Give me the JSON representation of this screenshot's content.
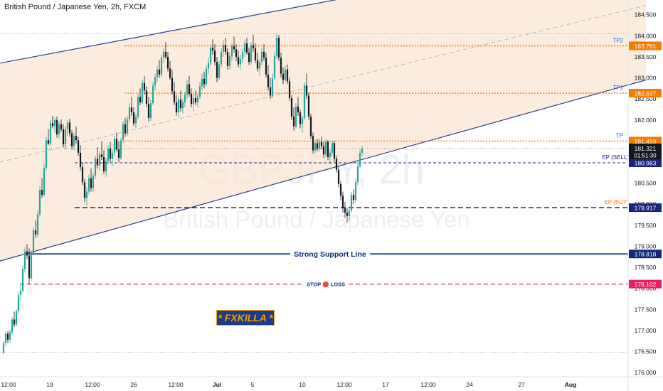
{
  "title": "British Pound / Japanese Yen, 2h, FXCM",
  "watermark": {
    "symbol": "GBPJPY, 2h",
    "name": "British Pound / Japanese Yen"
  },
  "brand": "* FXKILLA *",
  "colors": {
    "up": "#26a69a",
    "down": "#131722",
    "channel": "#2a3f8f",
    "channel_fill": "#fbe5d2",
    "mid_dash": "#b3b8cc",
    "target": "#f57c00",
    "entry": "#1a237e",
    "support": "#0d2b7a",
    "stop": "#e91e63",
    "price": "#131722"
  },
  "chart_data": {
    "type": "candlestick",
    "title": "British Pound / Japanese Yen, 2h, FXCM",
    "ylim": [
      175.9,
      184.85
    ],
    "y_ticks": [
      "184.500",
      "184.000",
      "183.500",
      "183.000",
      "182.500",
      "182.000",
      "181.500",
      "181.000",
      "180.500",
      "180.000",
      "179.500",
      "179.000",
      "178.500",
      "178.000",
      "177.500",
      "177.000",
      "176.500",
      "176.000"
    ],
    "x_ticks": [
      "12:00",
      "19",
      "12:00",
      "26",
      "12:00",
      "Jul",
      "5",
      "10",
      "12:00",
      "17",
      "12:00",
      "24",
      "27",
      "Aug"
    ],
    "grid": false,
    "levels": [
      {
        "label": "TP2",
        "value": 183.761,
        "value_label": "183.761",
        "kind": "target"
      },
      {
        "label": "TP1",
        "value": 182.637,
        "value_label": "182.637",
        "kind": "target"
      },
      {
        "label": "TP",
        "value": 181.499,
        "value_label": "181.499",
        "kind": "target"
      },
      {
        "label": "EP (SELL)",
        "value": 180.983,
        "value_label": "180.983",
        "kind": "entry"
      },
      {
        "label": "EP (BUY)",
        "value": 179.917,
        "value_label": "179.917",
        "kind": "entry"
      },
      {
        "label": "Strong Support Line",
        "value": 178.818,
        "value_label": "178.818",
        "kind": "support"
      },
      {
        "label": "STOP 🔴 LOSS",
        "value": 178.102,
        "value_label": "178.102",
        "kind": "stop"
      }
    ],
    "last_price": {
      "value": 181.321,
      "label": "181.321",
      "countdown": "01:51:30"
    },
    "channel": {
      "upper": [
        [
          0,
          183.35
        ],
        [
          492,
          184.92
        ]
      ],
      "lower": [
        [
          0,
          178.65
        ],
        [
          908,
          182.95
        ]
      ],
      "mid": [
        [
          0,
          181.0
        ],
        [
          908,
          184.72
        ]
      ]
    },
    "ohlc": [
      [
        176.48,
        176.75,
        176.44,
        176.7
      ],
      [
        176.7,
        176.98,
        176.62,
        176.92
      ],
      [
        176.92,
        176.98,
        176.7,
        176.78
      ],
      [
        176.78,
        177.02,
        176.72,
        176.96
      ],
      [
        176.96,
        177.32,
        176.9,
        177.26
      ],
      [
        177.26,
        177.45,
        177.08,
        177.14
      ],
      [
        177.14,
        177.52,
        177.1,
        177.46
      ],
      [
        177.46,
        177.92,
        177.38,
        177.84
      ],
      [
        177.84,
        178.12,
        177.7,
        177.95
      ],
      [
        177.95,
        178.55,
        177.9,
        178.46
      ],
      [
        178.46,
        178.98,
        178.38,
        178.88
      ],
      [
        178.88,
        179.05,
        178.7,
        178.78
      ],
      [
        178.78,
        178.95,
        178.1,
        178.24
      ],
      [
        178.24,
        178.9,
        178.18,
        178.82
      ],
      [
        178.82,
        179.46,
        178.78,
        179.38
      ],
      [
        179.38,
        179.62,
        179.2,
        179.28
      ],
      [
        179.28,
        179.84,
        179.22,
        179.76
      ],
      [
        179.76,
        180.42,
        179.7,
        180.34
      ],
      [
        180.34,
        180.62,
        180.15,
        180.22
      ],
      [
        180.22,
        180.95,
        180.18,
        180.86
      ],
      [
        180.86,
        181.6,
        180.8,
        181.52
      ],
      [
        181.52,
        181.78,
        181.4,
        181.44
      ],
      [
        181.44,
        182.0,
        181.38,
        181.92
      ],
      [
        181.92,
        182.1,
        181.8,
        181.86
      ],
      [
        181.86,
        182.05,
        181.7,
        182.0
      ],
      [
        182.0,
        182.08,
        181.58,
        181.66
      ],
      [
        181.66,
        181.98,
        181.55,
        181.9
      ],
      [
        181.9,
        182.02,
        181.72,
        181.78
      ],
      [
        181.78,
        181.9,
        181.35,
        181.42
      ],
      [
        181.42,
        181.85,
        181.3,
        181.78
      ],
      [
        181.78,
        182.0,
        181.62,
        181.94
      ],
      [
        181.94,
        182.03,
        181.6,
        181.68
      ],
      [
        181.68,
        181.76,
        181.3,
        181.38
      ],
      [
        181.38,
        181.7,
        181.28,
        181.62
      ],
      [
        181.62,
        181.85,
        181.45,
        181.52
      ],
      [
        181.52,
        181.6,
        181.15,
        181.22
      ],
      [
        181.22,
        181.4,
        180.8,
        180.88
      ],
      [
        180.88,
        181.0,
        180.45,
        180.52
      ],
      [
        180.52,
        180.6,
        180.05,
        180.15
      ],
      [
        180.15,
        180.4,
        179.96,
        180.3
      ],
      [
        180.3,
        180.7,
        180.22,
        180.62
      ],
      [
        180.62,
        180.85,
        180.3,
        180.38
      ],
      [
        180.38,
        180.75,
        180.3,
        180.68
      ],
      [
        180.68,
        181.15,
        180.6,
        181.08
      ],
      [
        181.08,
        181.35,
        180.85,
        180.92
      ],
      [
        180.92,
        181.25,
        180.8,
        181.18
      ],
      [
        181.18,
        181.5,
        181.05,
        181.12
      ],
      [
        181.12,
        181.28,
        180.72,
        180.78
      ],
      [
        180.78,
        181.1,
        180.65,
        181.02
      ],
      [
        181.02,
        181.4,
        180.95,
        181.32
      ],
      [
        181.32,
        181.48,
        181.0,
        181.08
      ],
      [
        181.08,
        181.3,
        180.9,
        181.22
      ],
      [
        181.22,
        181.62,
        181.15,
        181.55
      ],
      [
        181.55,
        181.7,
        181.25,
        181.3
      ],
      [
        181.3,
        181.5,
        181.0,
        181.1
      ],
      [
        181.1,
        181.58,
        181.05,
        181.52
      ],
      [
        181.52,
        181.98,
        181.45,
        181.9
      ],
      [
        181.9,
        182.05,
        181.6,
        181.68
      ],
      [
        181.68,
        182.1,
        181.62,
        182.02
      ],
      [
        182.02,
        182.4,
        181.95,
        182.3
      ],
      [
        182.3,
        182.55,
        182.1,
        182.18
      ],
      [
        182.18,
        182.3,
        181.85,
        181.92
      ],
      [
        181.92,
        182.15,
        181.8,
        182.08
      ],
      [
        182.08,
        182.62,
        182.02,
        182.55
      ],
      [
        182.55,
        182.75,
        182.35,
        182.42
      ],
      [
        182.42,
        182.95,
        182.38,
        182.88
      ],
      [
        182.88,
        183.05,
        182.6,
        182.7
      ],
      [
        182.7,
        182.8,
        182.3,
        182.38
      ],
      [
        182.38,
        182.55,
        181.95,
        182.05
      ],
      [
        182.05,
        182.48,
        181.98,
        182.4
      ],
      [
        182.4,
        182.9,
        182.35,
        182.82
      ],
      [
        182.82,
        183.1,
        182.7,
        183.02
      ],
      [
        183.02,
        183.3,
        182.9,
        183.2
      ],
      [
        183.2,
        183.42,
        183.0,
        183.08
      ],
      [
        183.08,
        183.55,
        183.02,
        183.48
      ],
      [
        183.48,
        183.7,
        183.35,
        183.62
      ],
      [
        183.62,
        183.85,
        183.45,
        183.5
      ],
      [
        183.5,
        183.62,
        183.15,
        183.22
      ],
      [
        183.22,
        183.4,
        182.95,
        183.0
      ],
      [
        183.0,
        183.2,
        182.6,
        182.68
      ],
      [
        182.68,
        182.9,
        182.35,
        182.42
      ],
      [
        182.42,
        182.6,
        182.1,
        182.18
      ],
      [
        182.18,
        182.55,
        182.05,
        182.48
      ],
      [
        182.48,
        182.7,
        182.2,
        182.28
      ],
      [
        182.28,
        182.5,
        182.15,
        182.42
      ],
      [
        182.42,
        182.68,
        182.3,
        182.6
      ],
      [
        182.6,
        182.95,
        182.5,
        182.85
      ],
      [
        182.85,
        183.05,
        182.55,
        182.62
      ],
      [
        182.62,
        182.75,
        182.3,
        182.38
      ],
      [
        182.38,
        182.6,
        182.2,
        182.52
      ],
      [
        182.52,
        182.7,
        182.35,
        182.42
      ],
      [
        182.42,
        182.62,
        182.3,
        182.55
      ],
      [
        182.55,
        182.9,
        182.48,
        182.8
      ],
      [
        182.8,
        183.1,
        182.7,
        182.98
      ],
      [
        182.98,
        183.15,
        182.75,
        182.85
      ],
      [
        182.85,
        183.3,
        182.8,
        183.22
      ],
      [
        183.22,
        183.48,
        183.1,
        183.35
      ],
      [
        183.35,
        183.8,
        183.28,
        183.72
      ],
      [
        183.72,
        183.92,
        183.55,
        183.65
      ],
      [
        183.65,
        183.8,
        183.3,
        183.38
      ],
      [
        183.38,
        183.5,
        182.9,
        183.0
      ],
      [
        183.0,
        183.4,
        182.95,
        183.32
      ],
      [
        183.32,
        183.7,
        183.25,
        183.62
      ],
      [
        183.62,
        183.9,
        183.5,
        183.78
      ],
      [
        183.78,
        183.95,
        183.55,
        183.62
      ],
      [
        183.62,
        183.7,
        183.2,
        183.28
      ],
      [
        183.28,
        183.6,
        183.2,
        183.52
      ],
      [
        183.52,
        183.82,
        183.4,
        183.75
      ],
      [
        183.75,
        183.98,
        183.6,
        183.68
      ],
      [
        183.68,
        183.8,
        183.4,
        183.5
      ],
      [
        183.5,
        183.65,
        183.25,
        183.32
      ],
      [
        183.32,
        183.55,
        183.2,
        183.45
      ],
      [
        183.45,
        183.7,
        183.35,
        183.62
      ],
      [
        183.62,
        183.9,
        183.5,
        183.82
      ],
      [
        183.82,
        183.95,
        183.55,
        183.6
      ],
      [
        183.6,
        183.72,
        183.3,
        183.38
      ],
      [
        183.38,
        183.85,
        183.32,
        183.78
      ],
      [
        183.78,
        184.02,
        183.62,
        183.7
      ],
      [
        183.7,
        183.82,
        183.35,
        183.42
      ],
      [
        183.42,
        183.6,
        183.15,
        183.22
      ],
      [
        183.22,
        183.45,
        183.05,
        183.38
      ],
      [
        183.38,
        183.7,
        183.3,
        183.62
      ],
      [
        183.62,
        183.8,
        183.4,
        183.48
      ],
      [
        183.48,
        183.6,
        183.0,
        183.08
      ],
      [
        183.08,
        183.3,
        182.7,
        182.78
      ],
      [
        182.78,
        183.0,
        182.5,
        182.58
      ],
      [
        182.58,
        183.1,
        182.52,
        183.0
      ],
      [
        183.0,
        183.6,
        182.95,
        183.52
      ],
      [
        183.52,
        184.05,
        183.45,
        183.95
      ],
      [
        183.95,
        184.02,
        183.4,
        183.48
      ],
      [
        183.48,
        183.6,
        183.0,
        183.1
      ],
      [
        183.1,
        183.25,
        182.85,
        182.95
      ],
      [
        182.95,
        183.3,
        182.9,
        183.2
      ],
      [
        183.2,
        183.32,
        182.85,
        182.92
      ],
      [
        182.92,
        183.0,
        182.45,
        182.52
      ],
      [
        182.52,
        182.6,
        182.0,
        182.08
      ],
      [
        182.08,
        182.3,
        181.75,
        181.85
      ],
      [
        181.85,
        182.4,
        181.8,
        182.32
      ],
      [
        182.32,
        182.55,
        182.1,
        182.18
      ],
      [
        182.18,
        182.25,
        181.8,
        181.9
      ],
      [
        181.9,
        182.1,
        181.7,
        182.05
      ],
      [
        182.05,
        182.9,
        182.0,
        182.82
      ],
      [
        182.82,
        183.1,
        182.5,
        182.58
      ],
      [
        182.58,
        182.65,
        182.0,
        182.08
      ],
      [
        182.08,
        182.15,
        181.55,
        181.62
      ],
      [
        181.62,
        181.7,
        181.2,
        181.28
      ],
      [
        181.28,
        181.5,
        181.2,
        181.45
      ],
      [
        181.45,
        181.55,
        181.25,
        181.32
      ],
      [
        181.32,
        181.55,
        181.25,
        181.48
      ],
      [
        181.48,
        181.6,
        181.3,
        181.38
      ],
      [
        181.38,
        181.48,
        181.1,
        181.18
      ],
      [
        181.18,
        181.55,
        181.12,
        181.48
      ],
      [
        181.48,
        181.52,
        181.05,
        181.12
      ],
      [
        181.12,
        181.3,
        180.95,
        181.22
      ],
      [
        181.22,
        181.52,
        181.15,
        181.45
      ],
      [
        181.45,
        181.5,
        181.0,
        181.08
      ],
      [
        181.08,
        181.15,
        180.75,
        180.82
      ],
      [
        180.82,
        180.9,
        180.4,
        180.48
      ],
      [
        180.48,
        180.55,
        180.1,
        180.2
      ],
      [
        180.2,
        180.3,
        179.8,
        179.9
      ],
      [
        179.9,
        180.05,
        179.68,
        179.8
      ],
      [
        179.8,
        179.92,
        179.55,
        179.72
      ],
      [
        179.72,
        179.95,
        179.6,
        179.85
      ],
      [
        179.85,
        180.3,
        179.8,
        180.22
      ],
      [
        180.22,
        180.35,
        180.0,
        180.1
      ],
      [
        180.1,
        180.6,
        180.05,
        180.52
      ],
      [
        180.52,
        181.0,
        180.45,
        180.9
      ],
      [
        180.9,
        181.3,
        180.85,
        181.22
      ],
      [
        181.22,
        181.38,
        181.15,
        181.32
      ]
    ]
  }
}
